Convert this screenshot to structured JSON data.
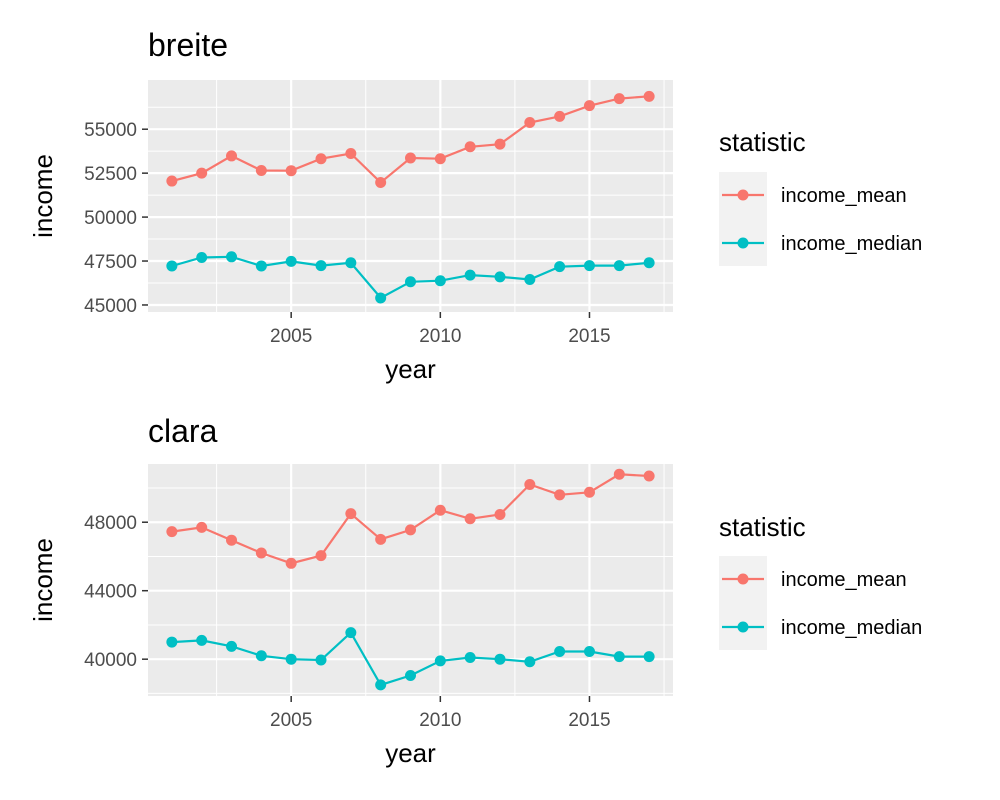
{
  "chart_data": [
    {
      "type": "line",
      "title": "breite",
      "xlabel": "year",
      "ylabel": "income",
      "x": [
        2001,
        2002,
        2003,
        2004,
        2005,
        2006,
        2007,
        2008,
        2009,
        2010,
        2011,
        2012,
        2013,
        2014,
        2015,
        2016,
        2017
      ],
      "xlim": [
        2000.2,
        2017.8
      ],
      "ylim": [
        44600,
        57800
      ],
      "x_ticks": [
        2005,
        2010,
        2015
      ],
      "x_tick_labels": [
        "2005",
        "2010",
        "2015"
      ],
      "y_ticks": [
        45000,
        47500,
        50000,
        52500,
        55000
      ],
      "y_tick_labels": [
        "45000",
        "47500",
        "50000",
        "52500",
        "55000"
      ],
      "grid": true,
      "legend_title": "statistic",
      "legend_position": "right",
      "series": [
        {
          "name": "income_mean",
          "color": "#F8766D",
          "values": [
            52050,
            52500,
            53480,
            52650,
            52640,
            53320,
            53620,
            51970,
            53360,
            53320,
            54000,
            54150,
            55380,
            55730,
            56340,
            56740,
            56870
          ]
        },
        {
          "name": "income_median",
          "color": "#00BFC4",
          "values": [
            47220,
            47700,
            47740,
            47220,
            47480,
            47240,
            47400,
            45400,
            46320,
            46380,
            46700,
            46600,
            46450,
            47180,
            47240,
            47240,
            47400
          ]
        }
      ]
    },
    {
      "type": "line",
      "title": "clara",
      "xlabel": "year",
      "ylabel": "income",
      "x": [
        2001,
        2002,
        2003,
        2004,
        2005,
        2006,
        2007,
        2008,
        2009,
        2010,
        2011,
        2012,
        2013,
        2014,
        2015,
        2016,
        2017
      ],
      "xlim": [
        2000.2,
        2017.8
      ],
      "ylim": [
        37850,
        51400
      ],
      "x_ticks": [
        2005,
        2010,
        2015
      ],
      "x_tick_labels": [
        "2005",
        "2010",
        "2015"
      ],
      "y_ticks": [
        40000,
        44000,
        48000
      ],
      "y_tick_labels": [
        "40000",
        "44000",
        "48000"
      ],
      "grid": true,
      "legend_title": "statistic",
      "legend_position": "right",
      "series": [
        {
          "name": "income_mean",
          "color": "#F8766D",
          "values": [
            47450,
            47700,
            46950,
            46200,
            45600,
            46050,
            48500,
            47000,
            47550,
            48700,
            48200,
            48450,
            50200,
            49600,
            49750,
            50800,
            50700
          ]
        },
        {
          "name": "income_median",
          "color": "#00BFC4",
          "values": [
            41000,
            41100,
            40750,
            40200,
            40000,
            39950,
            41550,
            38500,
            39050,
            39900,
            40100,
            40000,
            39850,
            40450,
            40450,
            40150,
            40150
          ]
        }
      ]
    }
  ]
}
